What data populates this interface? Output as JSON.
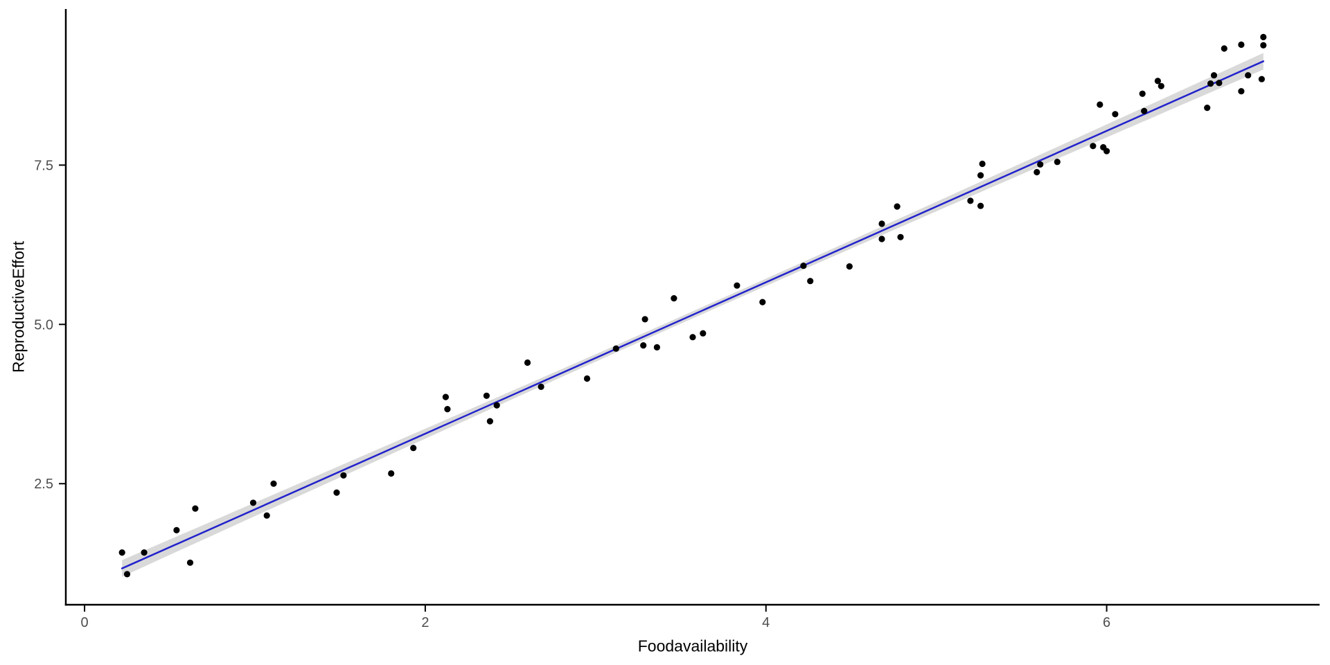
{
  "chart_data": {
    "type": "scatter",
    "title": "",
    "xlabel": "Foodavailability",
    "ylabel": "ReproductiveEffort",
    "xlim": [
      -0.11,
      7.25
    ],
    "ylim": [
      0.6,
      9.95
    ],
    "x_ticks": [
      {
        "value": 0,
        "label": "0"
      },
      {
        "value": 2,
        "label": "2"
      },
      {
        "value": 4,
        "label": "4"
      },
      {
        "value": 6,
        "label": "6"
      }
    ],
    "y_ticks": [
      {
        "value": 2.5,
        "label": "2.5"
      },
      {
        "value": 5.0,
        "label": "5.0"
      },
      {
        "value": 7.5,
        "label": "7.5"
      }
    ],
    "grid": false,
    "legend": false,
    "points": [
      [
        0.22,
        1.42
      ],
      [
        0.25,
        1.08
      ],
      [
        0.35,
        1.42
      ],
      [
        0.54,
        1.77
      ],
      [
        0.62,
        1.26
      ],
      [
        0.65,
        2.11
      ],
      [
        0.99,
        2.2
      ],
      [
        1.07,
        2.0
      ],
      [
        1.11,
        2.5
      ],
      [
        1.48,
        2.36
      ],
      [
        1.52,
        2.63
      ],
      [
        1.8,
        2.66
      ],
      [
        1.93,
        3.06
      ],
      [
        2.12,
        3.86
      ],
      [
        2.13,
        3.67
      ],
      [
        2.36,
        3.88
      ],
      [
        2.38,
        3.48
      ],
      [
        2.42,
        3.73
      ],
      [
        2.6,
        4.4
      ],
      [
        2.68,
        4.02
      ],
      [
        2.95,
        4.15
      ],
      [
        3.12,
        4.62
      ],
      [
        3.28,
        4.67
      ],
      [
        3.29,
        5.08
      ],
      [
        3.36,
        4.64
      ],
      [
        3.46,
        5.41
      ],
      [
        3.57,
        4.8
      ],
      [
        3.63,
        4.86
      ],
      [
        3.83,
        5.61
      ],
      [
        3.98,
        5.35
      ],
      [
        4.22,
        5.92
      ],
      [
        4.26,
        5.68
      ],
      [
        4.49,
        5.91
      ],
      [
        4.68,
        6.34
      ],
      [
        4.68,
        6.58
      ],
      [
        4.77,
        6.85
      ],
      [
        4.79,
        6.37
      ],
      [
        5.2,
        6.94
      ],
      [
        5.26,
        6.86
      ],
      [
        5.26,
        7.34
      ],
      [
        5.27,
        7.52
      ],
      [
        5.59,
        7.39
      ],
      [
        5.61,
        7.51
      ],
      [
        5.71,
        7.55
      ],
      [
        5.92,
        7.8
      ],
      [
        5.96,
        8.45
      ],
      [
        5.98,
        7.78
      ],
      [
        6.0,
        7.72
      ],
      [
        6.05,
        8.3
      ],
      [
        6.21,
        8.62
      ],
      [
        6.22,
        8.35
      ],
      [
        6.3,
        8.82
      ],
      [
        6.32,
        8.74
      ],
      [
        6.59,
        8.4
      ],
      [
        6.61,
        8.78
      ],
      [
        6.63,
        8.91
      ],
      [
        6.66,
        8.79
      ],
      [
        6.69,
        9.33
      ],
      [
        6.79,
        8.66
      ],
      [
        6.79,
        9.39
      ],
      [
        6.83,
        8.91
      ],
      [
        6.91,
        8.85
      ],
      [
        6.92,
        9.38
      ],
      [
        6.92,
        9.51
      ]
    ],
    "regression_line": {
      "x1": 0.22,
      "y1": 1.17,
      "x2": 6.92,
      "y2": 9.13
    },
    "confidence_band": {
      "half_width_center": 0.055,
      "half_width_end": 0.13
    },
    "colors": {
      "point": "#000000",
      "line": "#2222cc",
      "band": "#d9d9d9",
      "axis": "#000000",
      "tick_label": "#4d4d4d",
      "background": "#ffffff"
    }
  }
}
